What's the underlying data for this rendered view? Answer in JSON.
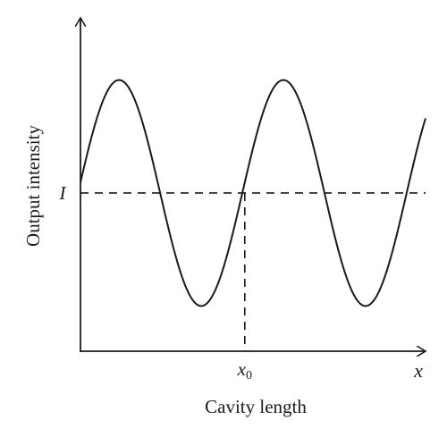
{
  "chart_data": {
    "type": "line",
    "title": "",
    "xlabel": "Cavity length",
    "ylabel": "Output intensity",
    "x_axis_end_label": "x",
    "x_marker": {
      "label_base": "x",
      "label_sub": "0",
      "x": 2.0
    },
    "y_reference": {
      "label": "I",
      "y": 0.0
    },
    "xlim": [
      0,
      4.2
    ],
    "ylim": [
      -1.4,
      1.55
    ],
    "grid": false,
    "legend": "none",
    "series": [
      {
        "function": "sine",
        "amplitude": 1.0,
        "period": 2.0,
        "phase_shift": -0.03,
        "x_start": 0.0,
        "x_end": 4.2,
        "stroke": "#1a1a1a"
      }
    ],
    "colors": {
      "axis": "#1a1a1a",
      "curve": "#1a1a1a",
      "dashed": "#1a1a1a"
    }
  }
}
